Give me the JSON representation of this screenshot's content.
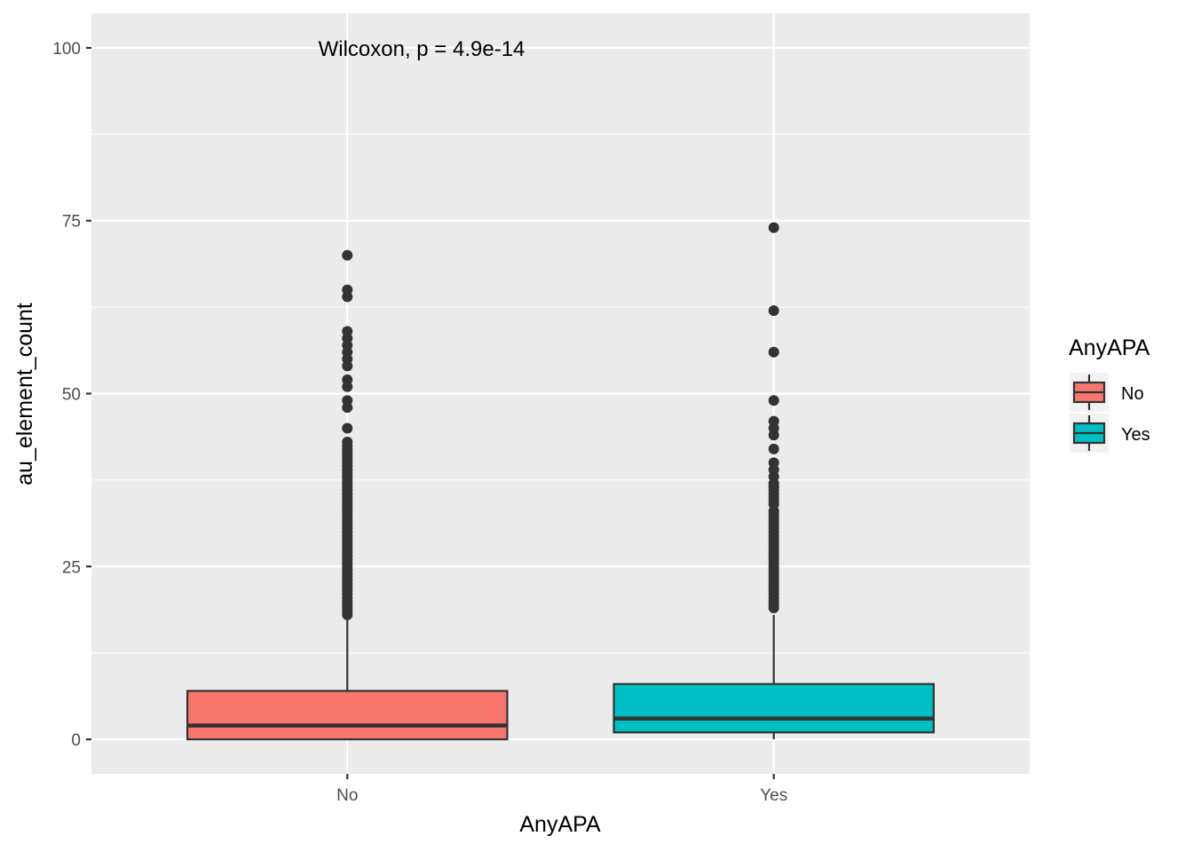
{
  "chart_data": {
    "type": "boxplot",
    "xlabel": "AnyAPA",
    "ylabel": "au_element_count",
    "categories": [
      "No",
      "Yes"
    ],
    "ylim": [
      -5,
      105
    ],
    "yticks": [
      0,
      25,
      50,
      75,
      100
    ],
    "annotation": "Wilcoxon, p = 4.9e-14",
    "grid": true,
    "legend": {
      "title": "AnyAPA",
      "placement": "right",
      "entries": [
        "No",
        "Yes"
      ]
    },
    "colors": {
      "No": "#F8766D",
      "Yes": "#00BFC4",
      "panel": "#EBEBEB",
      "grid": "#FFFFFF",
      "outline": "#333333"
    },
    "boxes": [
      {
        "category": "No",
        "q1": 0,
        "median": 2,
        "q3": 7,
        "whisker_low": 0,
        "whisker_high": 17.5,
        "outliers": [
          18,
          18.5,
          19,
          19.5,
          20,
          20.5,
          21,
          21.5,
          22,
          22.5,
          23,
          23.5,
          24,
          24.5,
          25,
          25.5,
          26,
          26.5,
          27,
          27.5,
          28,
          28.5,
          29,
          29.5,
          30,
          30.5,
          31,
          31.5,
          32,
          32.5,
          33,
          33.5,
          34,
          34.5,
          35,
          35.5,
          36,
          36.5,
          37,
          37.5,
          38,
          38.5,
          39,
          39.5,
          40,
          40.5,
          41,
          41.5,
          42,
          42.5,
          43,
          45,
          48,
          49,
          51,
          52,
          54,
          55,
          56,
          57,
          58,
          59,
          64,
          65,
          70
        ]
      },
      {
        "category": "Yes",
        "q1": 1,
        "median": 3,
        "q3": 8,
        "whisker_low": 0,
        "whisker_high": 18,
        "outliers": [
          19,
          19.5,
          20,
          20.5,
          21,
          21.5,
          22,
          22.5,
          23,
          23.5,
          24,
          24.5,
          25,
          25.5,
          26,
          26.5,
          27,
          27.5,
          28,
          28.5,
          29,
          29.5,
          30,
          30.5,
          31,
          31.5,
          32,
          32.5,
          33,
          34,
          34.5,
          35,
          35.5,
          36,
          36.5,
          37,
          38,
          39,
          40,
          42,
          44,
          45,
          46,
          49,
          56,
          62,
          74
        ]
      }
    ]
  }
}
